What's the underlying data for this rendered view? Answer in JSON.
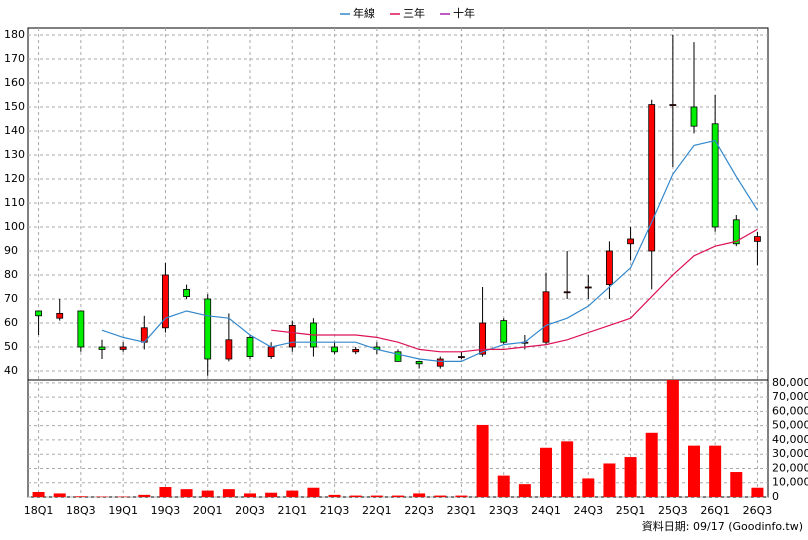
{
  "chart_data": {
    "type": "candlestick",
    "categories": [
      "18Q1",
      null,
      "18Q3",
      null,
      "19Q1",
      null,
      "19Q3",
      null,
      "20Q1",
      null,
      "20Q3",
      null,
      "21Q1",
      null,
      "21Q3",
      null,
      "22Q1",
      null,
      "22Q3",
      null,
      "23Q1",
      null,
      "23Q3",
      null,
      "24Q1",
      null,
      "24Q3",
      null,
      "25Q1",
      null,
      "25Q3",
      null,
      "26Q1",
      null,
      "26Q3"
    ],
    "open": [
      65,
      62,
      65,
      50,
      49,
      52,
      58,
      74,
      70,
      45,
      54,
      46,
      50,
      60,
      50,
      48,
      50,
      48,
      44,
      42,
      46,
      47,
      61,
      52,
      52,
      73,
      75,
      76,
      93,
      90,
      151,
      150,
      143,
      103,
      94
    ],
    "high": [
      65,
      70,
      65,
      53,
      52,
      63,
      85,
      76,
      72,
      64,
      55,
      52,
      61,
      62,
      52,
      50,
      52,
      49,
      44,
      46,
      48,
      75,
      62,
      55,
      81,
      90,
      80,
      94,
      100,
      153,
      180,
      177,
      155,
      105,
      98
    ],
    "low": [
      55,
      61,
      48,
      45,
      48,
      49,
      56,
      70,
      38,
      44,
      45,
      45,
      48,
      46,
      47,
      47,
      47,
      44,
      41,
      41,
      45,
      46,
      51,
      49,
      51,
      70,
      70,
      70,
      86,
      74,
      125,
      139,
      98,
      92,
      84
    ],
    "close": [
      63,
      64,
      50,
      49,
      50,
      58,
      80,
      71,
      45,
      53,
      46,
      50,
      59,
      50,
      48,
      49,
      49,
      44,
      43,
      45,
      46,
      60,
      52,
      52,
      73,
      73,
      75,
      90,
      95,
      151,
      151,
      142,
      100,
      93,
      96
    ],
    "up_color": "#ff0000",
    "down_color": "#00ee00",
    "ylim": [
      36.25,
      182.9
    ],
    "yticks": [
      40,
      50,
      60,
      70,
      80,
      90,
      100,
      110,
      120,
      130,
      140,
      150,
      160,
      170,
      180
    ],
    "series": [
      {
        "name": "年線",
        "color": "#3388cc",
        "values": [
          null,
          null,
          null,
          57,
          54,
          52,
          62,
          65,
          63,
          62,
          55,
          50,
          52,
          52,
          52,
          52,
          49,
          47,
          45,
          44,
          44,
          48,
          51,
          52,
          59,
          62,
          67,
          75,
          83,
          102,
          122,
          134,
          136,
          121,
          107
        ]
      },
      {
        "name": "三年",
        "color": "#dd1155",
        "values": [
          null,
          null,
          null,
          null,
          null,
          null,
          null,
          null,
          null,
          null,
          null,
          57,
          56,
          55,
          55,
          55,
          54,
          52,
          49,
          48,
          48,
          49,
          49,
          50,
          51,
          53,
          56,
          59,
          62,
          71,
          80,
          88,
          92,
          94,
          99
        ]
      },
      {
        "name": "十年",
        "color": "#aa22aa",
        "values": [
          null,
          null,
          null,
          null,
          null,
          null,
          null,
          null,
          null,
          null,
          null,
          null,
          null,
          null,
          null,
          null,
          null,
          null,
          null,
          null,
          null,
          null,
          null,
          null,
          null,
          null,
          null,
          null,
          null,
          null,
          null,
          null,
          null,
          null,
          null
        ]
      }
    ],
    "volume": {
      "color": "#ff0000",
      "values": [
        3500,
        2500,
        500,
        300,
        300,
        1500,
        7000,
        5500,
        4500,
        5500,
        2500,
        3000,
        4500,
        6500,
        1500,
        1000,
        1000,
        1000,
        2500,
        1000,
        1000,
        50500,
        15000,
        9000,
        34500,
        39000,
        13000,
        23500,
        28000,
        45000,
        82000,
        36000,
        36000,
        17500,
        6500
      ]
    },
    "y2lim": [
      0,
      82000
    ],
    "y2ticks": [
      0,
      {
        "value": 10000,
        "label": "10,000"
      },
      {
        "value": 20000,
        "label": "20,000"
      },
      {
        "value": 30000,
        "label": "30,000"
      },
      {
        "value": 40000,
        "label": "40,000"
      },
      {
        "value": 50000,
        "label": "50,000"
      },
      {
        "value": 60000,
        "label": "60,000"
      },
      {
        "value": 70000,
        "label": "70,000"
      },
      {
        "value": 80000,
        "label": "80,000"
      }
    ],
    "grid": true,
    "footer": "資料日期: 09/17  (Goodinfo.tw)"
  }
}
